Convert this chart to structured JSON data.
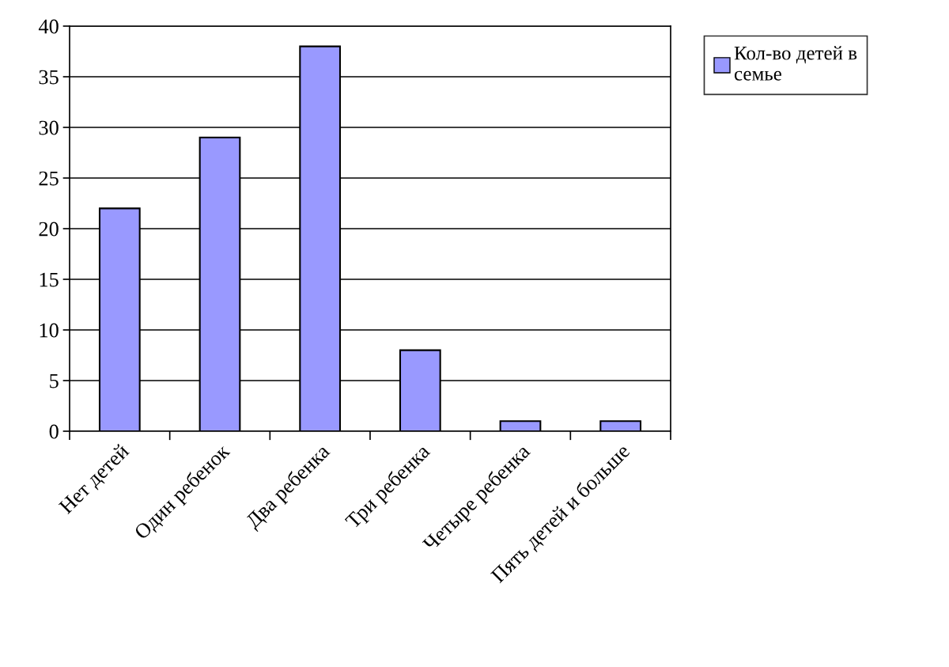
{
  "chart_data": {
    "type": "bar",
    "categories": [
      "Нет детей",
      "Один ребенок",
      "Два ребенка",
      "Три ребенка",
      "Четыре ребенка",
      "Пять детей и больше"
    ],
    "series": [
      {
        "name": "Кол-во детей в семье",
        "color": "#9999ff",
        "values": [
          22,
          29,
          38,
          8,
          1,
          1
        ]
      }
    ],
    "ylim": [
      0,
      40
    ],
    "yticks": [
      0,
      5,
      10,
      15,
      20,
      25,
      30,
      35,
      40
    ],
    "grid": "y",
    "legend": "top right"
  }
}
